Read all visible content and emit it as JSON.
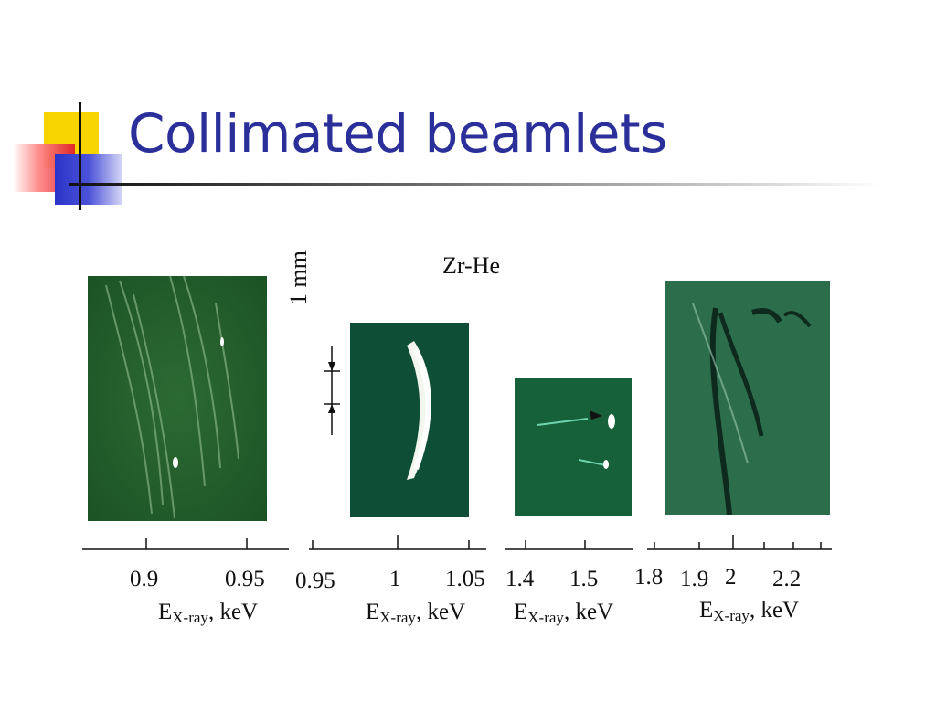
{
  "slide": {
    "title": "Collimated beamlets"
  },
  "figure": {
    "label": "Zr-He",
    "scale_bar": "1 mm",
    "panels": [
      {
        "name": "panel-1",
        "axis_title_main": "E",
        "axis_title_sub": "X-ray",
        "axis_title_unit": ", keV",
        "tick_labels": [
          "0.9",
          "0.95"
        ]
      },
      {
        "name": "panel-2",
        "axis_title_main": "E",
        "axis_title_sub": "X-ray",
        "axis_title_unit": ", keV",
        "tick_labels": [
          "0.95",
          "1",
          "1.05"
        ]
      },
      {
        "name": "panel-3",
        "axis_title_main": "E",
        "axis_title_sub": "X-ray",
        "axis_title_unit": ", keV",
        "tick_labels": [
          "1.4",
          "1.5"
        ]
      },
      {
        "name": "panel-4",
        "axis_title_main": "E",
        "axis_title_sub": "X-ray",
        "axis_title_unit": ", keV",
        "tick_labels": [
          "1.8",
          "1.9",
          "2",
          "2.2"
        ]
      }
    ]
  },
  "colors": {
    "title": "#2b2f9a",
    "panel_green": "#1f5a2c",
    "panel_dark_green": "#0f4a2a"
  }
}
